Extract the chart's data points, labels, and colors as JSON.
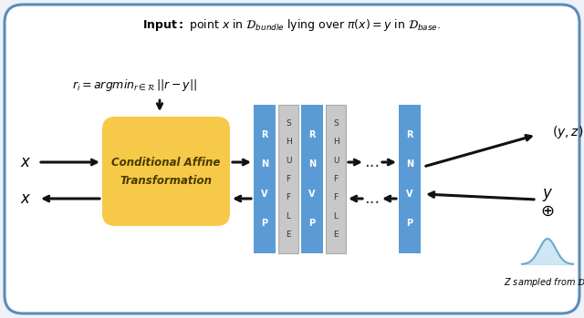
{
  "bg_color": "#eef2f7",
  "border_color": "#5b8db8",
  "box_color": "#f7c948",
  "box_text1": "Conditional Affine",
  "box_text2": "Transformation",
  "rnvp_color": "#5b9bd5",
  "shuffle_color": "#c8c8c8",
  "shuffle_border": "#aaaaaa",
  "arrow_color": "#111111",
  "x_top": "$x$",
  "x_bot": "$x$",
  "yz_text": "$(y, z)$",
  "y_text": "$y$",
  "oplus_text": "$\\oplus$",
  "gaussian_text": "$Z$ sampled from $\\mathcal{D}_Z$",
  "formula": "$r_i = argmin_{r\\in\\mathcal{R}}\\,||r - y||$",
  "rnvp_letters": [
    "R",
    "N",
    "V",
    "P"
  ],
  "shuffle_letters": [
    "S",
    "H",
    "U",
    "F",
    "F",
    "L",
    "E"
  ]
}
